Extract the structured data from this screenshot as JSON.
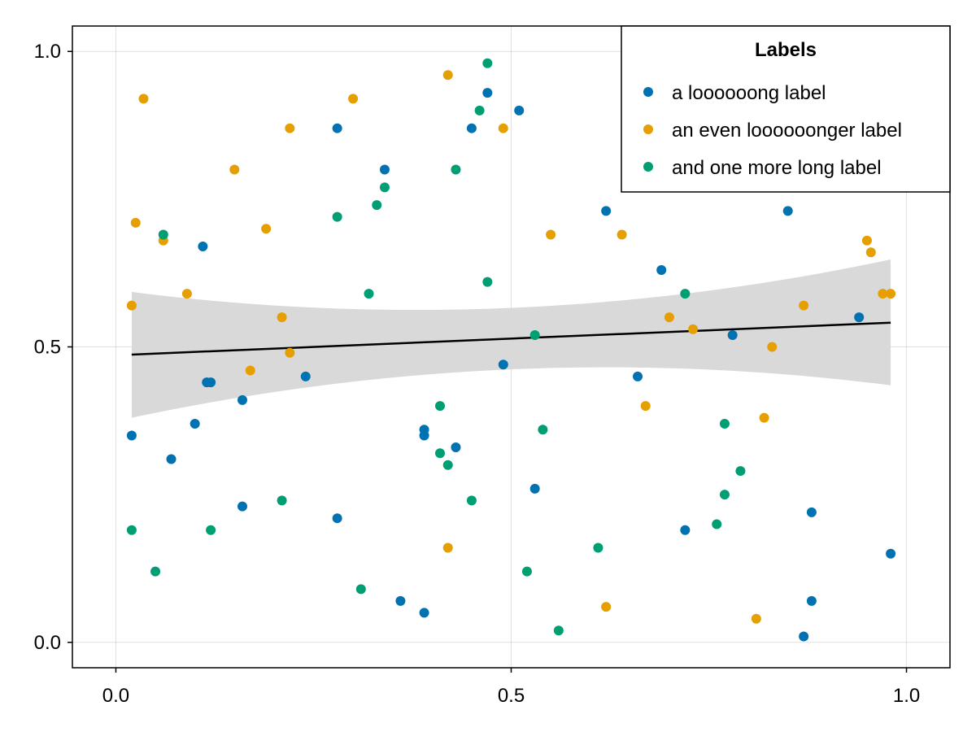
{
  "chart_data": {
    "type": "scatter",
    "title": "",
    "xlabel": "",
    "ylabel": "",
    "xlim": [
      -0.055,
      1.055
    ],
    "ylim": [
      -0.043,
      1.043
    ],
    "grid": true,
    "x_ticks": [
      {
        "value": 0.0,
        "label": "0.0"
      },
      {
        "value": 0.5,
        "label": "0.5"
      },
      {
        "value": 1.0,
        "label": "1.0"
      }
    ],
    "y_ticks": [
      {
        "value": 0.0,
        "label": "0.0"
      },
      {
        "value": 0.5,
        "label": "0.5"
      },
      {
        "value": 1.0,
        "label": "1.0"
      }
    ],
    "legend": {
      "title": "Labels",
      "placement": "top-right"
    },
    "series": [
      {
        "name": "a loooooong label",
        "color": "#0072B2",
        "points": [
          [
            0.02,
            0.35
          ],
          [
            0.07,
            0.31
          ],
          [
            0.1,
            0.37
          ],
          [
            0.11,
            0.67
          ],
          [
            0.115,
            0.44
          ],
          [
            0.12,
            0.44
          ],
          [
            0.16,
            0.41
          ],
          [
            0.16,
            0.23
          ],
          [
            0.24,
            0.45
          ],
          [
            0.28,
            0.87
          ],
          [
            0.28,
            0.21
          ],
          [
            0.34,
            0.8
          ],
          [
            0.36,
            0.07
          ],
          [
            0.39,
            0.36
          ],
          [
            0.39,
            0.35
          ],
          [
            0.39,
            0.05
          ],
          [
            0.43,
            0.33
          ],
          [
            0.45,
            0.87
          ],
          [
            0.47,
            0.93
          ],
          [
            0.49,
            0.47
          ],
          [
            0.51,
            0.9
          ],
          [
            0.53,
            0.26
          ],
          [
            0.62,
            0.73
          ],
          [
            0.66,
            0.45
          ],
          [
            0.69,
            0.63
          ],
          [
            0.72,
            0.19
          ],
          [
            0.78,
            0.52
          ],
          [
            0.85,
            0.73
          ],
          [
            0.87,
            0.01
          ],
          [
            0.88,
            0.22
          ],
          [
            0.88,
            0.07
          ],
          [
            0.94,
            0.55
          ],
          [
            0.98,
            0.15
          ]
        ]
      },
      {
        "name": "an even loooooonger label",
        "color": "#E69F00",
        "points": [
          [
            0.02,
            0.57
          ],
          [
            0.025,
            0.71
          ],
          [
            0.035,
            0.92
          ],
          [
            0.06,
            0.68
          ],
          [
            0.09,
            0.59
          ],
          [
            0.15,
            0.8
          ],
          [
            0.17,
            0.46
          ],
          [
            0.19,
            0.7
          ],
          [
            0.21,
            0.55
          ],
          [
            0.22,
            0.49
          ],
          [
            0.22,
            0.87
          ],
          [
            0.3,
            0.92
          ],
          [
            0.42,
            0.96
          ],
          [
            0.42,
            0.16
          ],
          [
            0.49,
            0.87
          ],
          [
            0.55,
            0.69
          ],
          [
            0.62,
            0.06
          ],
          [
            0.64,
            0.69
          ],
          [
            0.67,
            0.4
          ],
          [
            0.7,
            0.55
          ],
          [
            0.73,
            0.53
          ],
          [
            0.81,
            0.04
          ],
          [
            0.82,
            0.38
          ],
          [
            0.83,
            0.5
          ],
          [
            0.87,
            0.57
          ],
          [
            0.95,
            0.68
          ],
          [
            0.955,
            0.66
          ],
          [
            0.97,
            0.59
          ],
          [
            0.98,
            0.59
          ]
        ]
      },
      {
        "name": "and one more long label",
        "color": "#009E73",
        "points": [
          [
            0.02,
            0.19
          ],
          [
            0.05,
            0.12
          ],
          [
            0.06,
            0.69
          ],
          [
            0.12,
            0.19
          ],
          [
            0.21,
            0.24
          ],
          [
            0.28,
            0.72
          ],
          [
            0.31,
            0.09
          ],
          [
            0.32,
            0.59
          ],
          [
            0.33,
            0.74
          ],
          [
            0.34,
            0.77
          ],
          [
            0.41,
            0.4
          ],
          [
            0.41,
            0.32
          ],
          [
            0.42,
            0.3
          ],
          [
            0.43,
            0.8
          ],
          [
            0.45,
            0.24
          ],
          [
            0.46,
            0.9
          ],
          [
            0.47,
            0.98
          ],
          [
            0.47,
            0.61
          ],
          [
            0.52,
            0.12
          ],
          [
            0.53,
            0.52
          ],
          [
            0.54,
            0.36
          ],
          [
            0.56,
            0.02
          ],
          [
            0.61,
            0.16
          ],
          [
            0.72,
            0.59
          ],
          [
            0.76,
            0.2
          ],
          [
            0.77,
            0.37
          ],
          [
            0.77,
            0.25
          ],
          [
            0.79,
            0.29
          ]
        ]
      }
    ],
    "fit_line": {
      "color": "#000000",
      "x": [
        0.02,
        0.98
      ],
      "y": [
        0.487,
        0.541
      ]
    },
    "confidence_band": {
      "color": "#D9D9D9",
      "x": [
        0.02,
        0.5,
        0.98
      ],
      "upper": [
        0.593,
        0.566,
        0.648
      ],
      "lower": [
        0.38,
        0.462,
        0.435
      ]
    }
  }
}
